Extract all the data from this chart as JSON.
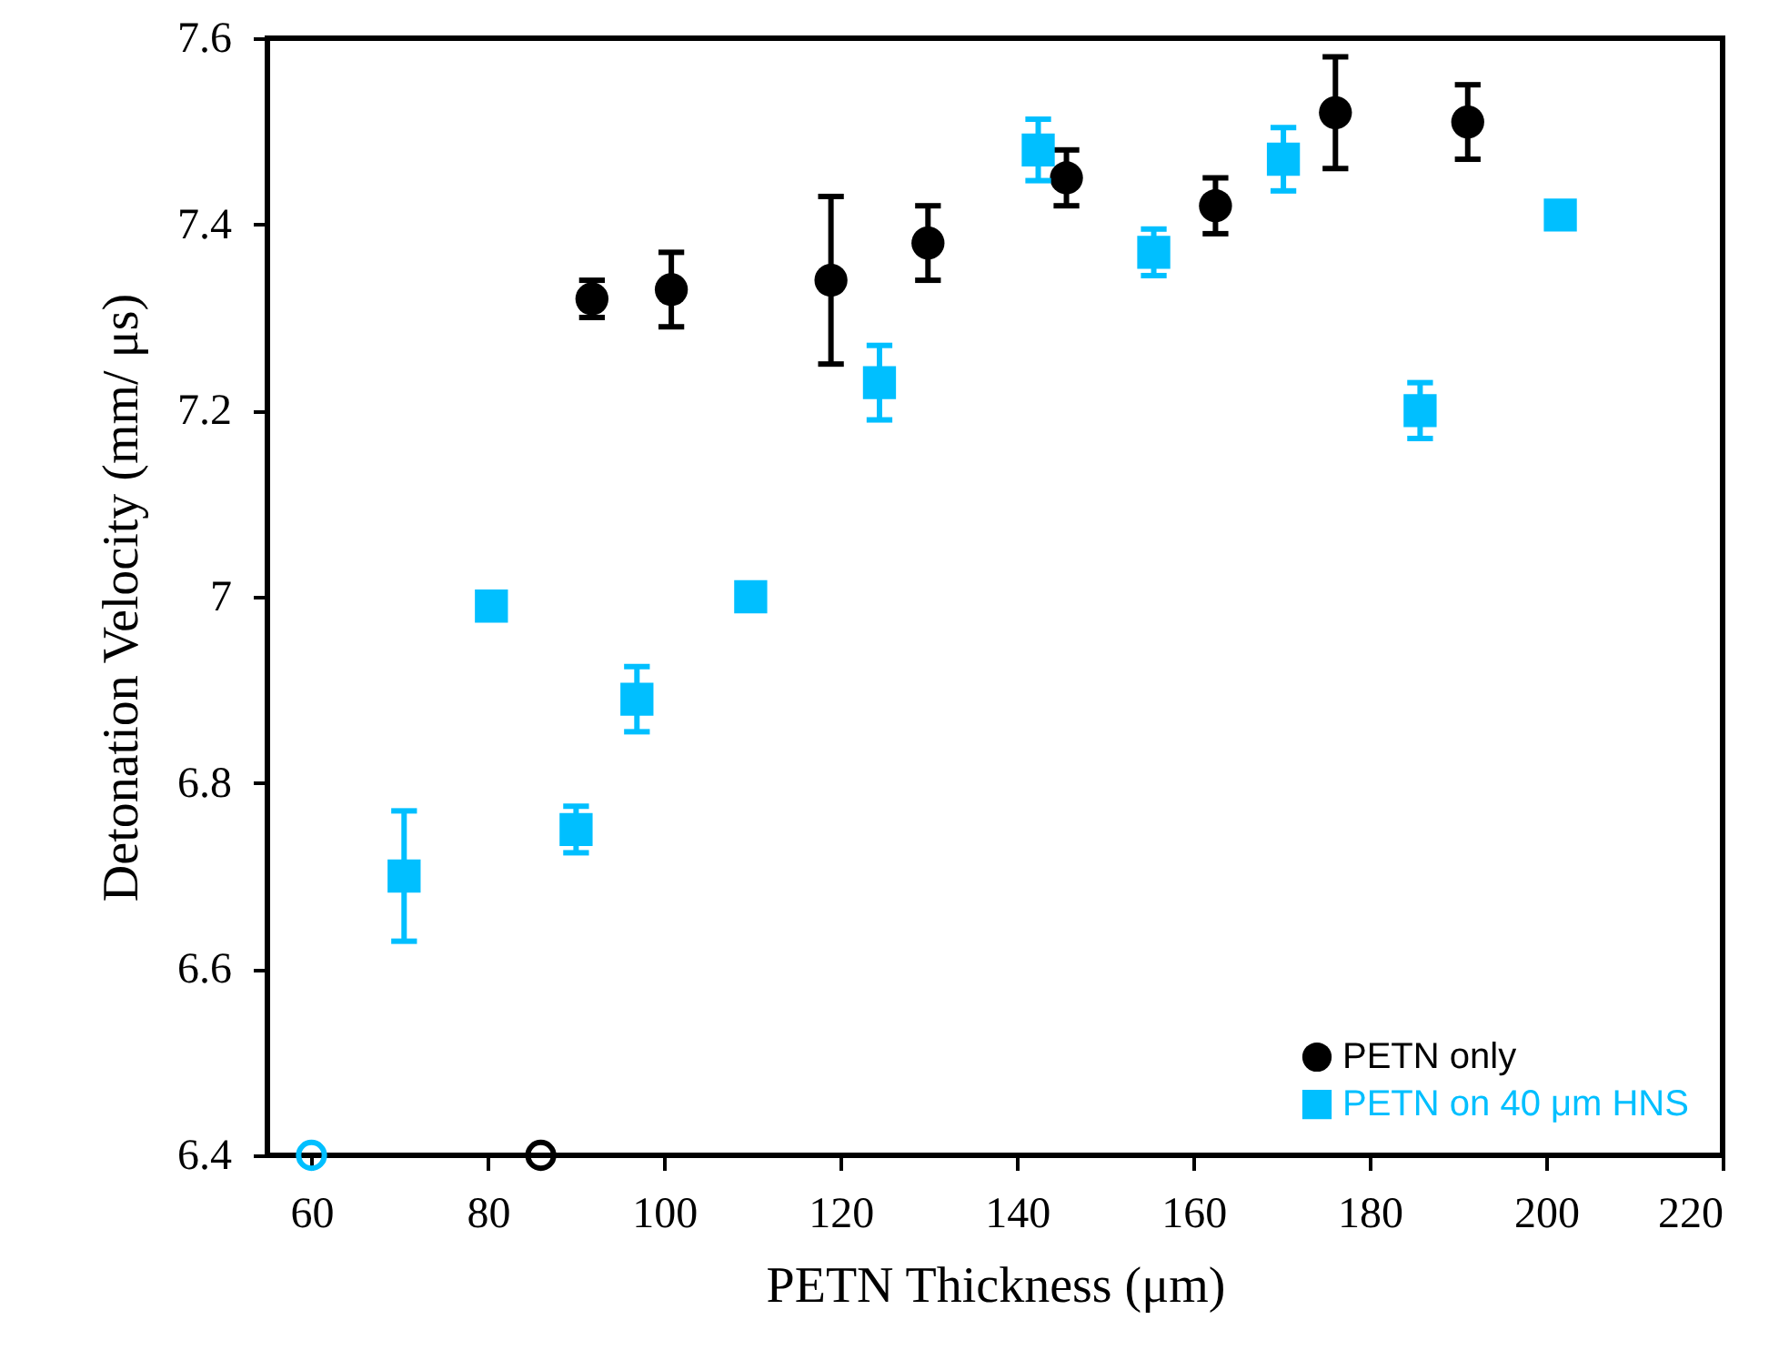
{
  "chart_data": {
    "type": "scatter",
    "xlabel": "PETN Thickness (μm)",
    "ylabel": "Detonation Velocity (mm/ μs)",
    "xlim": [
      55,
      220
    ],
    "xticks": [
      60,
      80,
      100,
      120,
      140,
      160,
      180,
      200,
      220
    ],
    "ylim": [
      6.4,
      7.6
    ],
    "yticks": [
      6.4,
      6.6,
      6.8,
      7,
      7.2,
      7.4,
      7.6
    ],
    "legend": "bottom right",
    "series": [
      {
        "name": "PETN only",
        "color": "#000000",
        "marker": "circle",
        "x": [
          91.8,
          100.8,
          118.9,
          129.9,
          145.6,
          162.5,
          176.1,
          191.1
        ],
        "values": [
          7.32,
          7.33,
          7.34,
          7.38,
          7.45,
          7.42,
          7.52,
          7.51
        ],
        "errors": [
          0.02,
          0.04,
          0.09,
          0.04,
          0.03,
          0.03,
          0.06,
          0.04
        ]
      },
      {
        "name": "PETN on 40 μm HNS",
        "color": "#00bfff",
        "marker": "square",
        "x": [
          70.5,
          80.4,
          90.0,
          96.9,
          109.8,
          124.4,
          142.4,
          155.5,
          170.2,
          185.7,
          201.6
        ],
        "values": [
          6.7,
          6.99,
          6.75,
          6.89,
          7.0,
          7.23,
          7.48,
          7.37,
          7.47,
          7.2,
          7.41
        ],
        "errors": [
          0.07,
          null,
          0.025,
          0.035,
          null,
          0.04,
          0.033,
          0.025,
          0.034,
          0.03,
          null
        ]
      },
      {
        "color": "#00bfff",
        "marker": "circle",
        "x": [
          60
        ],
        "values": [
          6.4
        ]
      },
      {
        "color": "#000000",
        "marker": "circle",
        "x": [
          86
        ],
        "values": [
          6.4
        ]
      }
    ]
  }
}
